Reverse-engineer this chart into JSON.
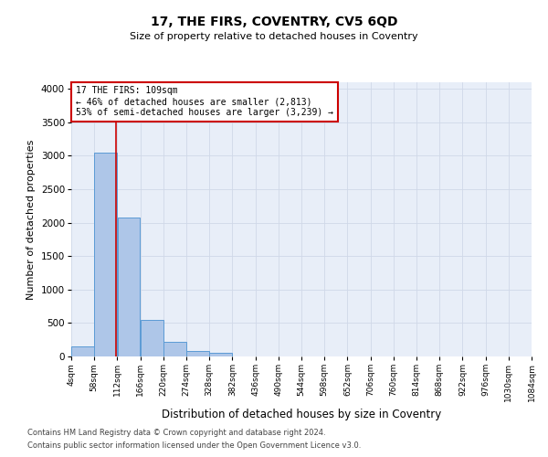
{
  "title": "17, THE FIRS, COVENTRY, CV5 6QD",
  "subtitle": "Size of property relative to detached houses in Coventry",
  "xlabel": "Distribution of detached houses by size in Coventry",
  "ylabel": "Number of detached properties",
  "annotation_text": "17 THE FIRS: 109sqm\n← 46% of detached houses are smaller (2,813)\n53% of semi-detached houses are larger (3,239) →",
  "bin_edges": [
    4,
    58,
    112,
    166,
    220,
    274,
    328,
    382,
    436,
    490,
    544,
    598,
    652,
    706,
    760,
    814,
    868,
    922,
    976,
    1030,
    1084
  ],
  "bin_labels": [
    "4sqm",
    "58sqm",
    "112sqm",
    "166sqm",
    "220sqm",
    "274sqm",
    "328sqm",
    "382sqm",
    "436sqm",
    "490sqm",
    "544sqm",
    "598sqm",
    "652sqm",
    "706sqm",
    "760sqm",
    "814sqm",
    "868sqm",
    "922sqm",
    "976sqm",
    "1030sqm",
    "1084sqm"
  ],
  "bar_heights": [
    150,
    3050,
    2080,
    550,
    220,
    80,
    60,
    0,
    0,
    0,
    0,
    0,
    0,
    0,
    0,
    0,
    0,
    0,
    0,
    0
  ],
  "bar_color": "#aec6e8",
  "bar_edgecolor": "#5b9bd5",
  "vline_x": 109,
  "vline_color": "#cc0000",
  "ylim": [
    0,
    4100
  ],
  "yticks": [
    0,
    500,
    1000,
    1500,
    2000,
    2500,
    3000,
    3500,
    4000
  ],
  "grid_color": "#d0d8e8",
  "bg_color": "#e8eef8",
  "annotation_box_color": "#ffffff",
  "annotation_box_edgecolor": "#cc0000",
  "footer1": "Contains HM Land Registry data © Crown copyright and database right 2024.",
  "footer2": "Contains public sector information licensed under the Open Government Licence v3.0."
}
